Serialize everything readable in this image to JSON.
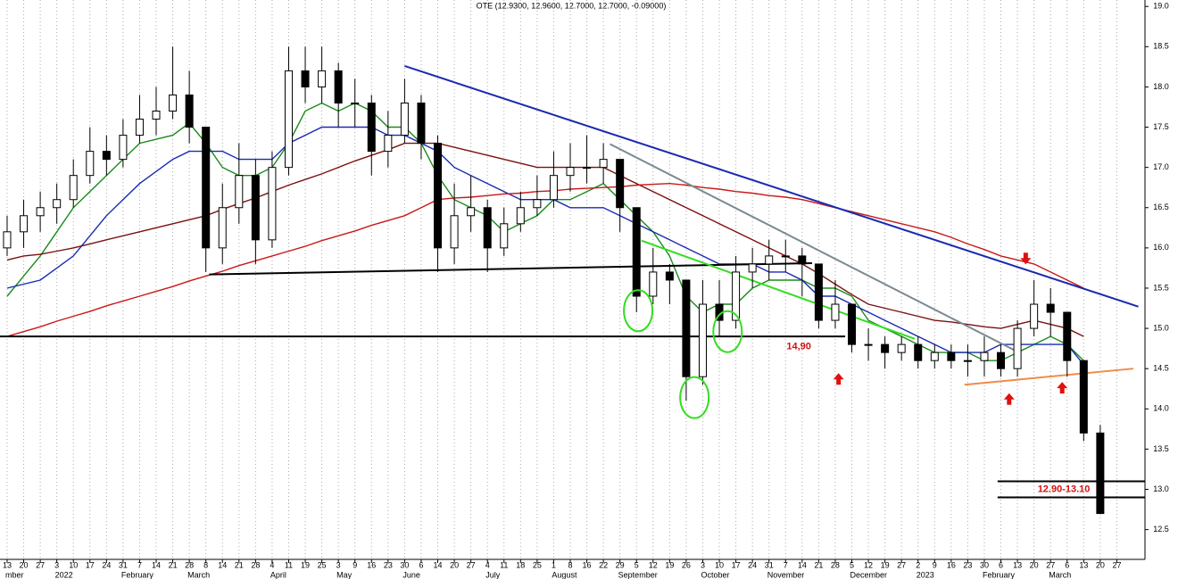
{
  "chart_data": {
    "type": "candlestick",
    "title": "OTE (12.9300, 12.9600, 12.7000, 12.7000, -0.09000)",
    "x_labels": [
      "13",
      "20",
      "27",
      "3",
      "10",
      "17",
      "24",
      "31",
      "7",
      "14",
      "21",
      "28",
      "8",
      "14",
      "21",
      "28",
      "4",
      "11",
      "19",
      "25",
      "3",
      "9",
      "16",
      "23",
      "30",
      "6",
      "14",
      "20",
      "27",
      "4",
      "11",
      "18",
      "25",
      "1",
      "8",
      "16",
      "22",
      "29",
      "5",
      "12",
      "19",
      "26",
      "3",
      "10",
      "17",
      "24",
      "31",
      "7",
      "14",
      "21",
      "28",
      "5",
      "12",
      "19",
      "27",
      "2",
      "9",
      "16",
      "23",
      "30",
      "6",
      "13",
      "20",
      "27",
      "6",
      "13",
      "20",
      "27"
    ],
    "month_labels": [
      "mber",
      null,
      null,
      "2022",
      null,
      null,
      null,
      "February",
      null,
      null,
      null,
      "March",
      null,
      null,
      null,
      null,
      "April",
      null,
      null,
      null,
      "May",
      null,
      null,
      null,
      "June",
      null,
      null,
      null,
      null,
      "July",
      null,
      null,
      null,
      "August",
      null,
      null,
      null,
      "September",
      null,
      null,
      null,
      null,
      "October",
      null,
      null,
      null,
      "November",
      null,
      null,
      null,
      null,
      "December",
      null,
      null,
      null,
      "2023",
      null,
      null,
      null,
      "February",
      null,
      null,
      null,
      "March",
      null,
      null,
      null,
      null
    ],
    "open": [
      16.0,
      16.2,
      16.4,
      16.5,
      16.6,
      16.9,
      17.2,
      17.1,
      17.4,
      17.6,
      17.7,
      17.9,
      17.5,
      16.0,
      16.5,
      16.9,
      16.1,
      17.0,
      18.2,
      18.0,
      18.2,
      17.8,
      17.8,
      17.2,
      17.4,
      17.8,
      17.3,
      16.0,
      16.4,
      16.5,
      16.0,
      16.3,
      16.5,
      16.6,
      16.9,
      17.0,
      17.0,
      17.1,
      16.5,
      15.4,
      15.7,
      15.6,
      14.4,
      15.3,
      15.1,
      15.7,
      15.8,
      15.9,
      15.9,
      15.8,
      15.1,
      15.3,
      14.8,
      14.8,
      14.7,
      14.8,
      14.6,
      14.7,
      14.6,
      14.6,
      14.7,
      14.5,
      15.0,
      15.3,
      15.2,
      14.6,
      13.7,
      null
    ],
    "high": [
      16.4,
      16.6,
      16.7,
      16.8,
      17.1,
      17.5,
      17.4,
      17.6,
      17.9,
      18.0,
      18.5,
      18.2,
      17.5,
      16.8,
      17.3,
      17.1,
      17.2,
      18.5,
      18.5,
      18.5,
      18.3,
      18.1,
      17.9,
      17.7,
      18.1,
      17.9,
      17.4,
      16.8,
      16.9,
      16.6,
      16.5,
      16.7,
      16.9,
      17.2,
      17.3,
      17.4,
      17.3,
      17.1,
      16.5,
      16.0,
      15.8,
      15.6,
      15.6,
      15.6,
      15.9,
      16.0,
      16.1,
      16.1,
      16.0,
      15.8,
      15.6,
      15.3,
      15.0,
      14.9,
      14.9,
      14.9,
      14.8,
      14.8,
      14.8,
      14.9,
      14.8,
      15.1,
      15.6,
      15.5,
      15.2,
      14.6,
      13.8,
      null
    ],
    "low": [
      15.9,
      16.0,
      16.2,
      16.3,
      16.5,
      16.8,
      16.9,
      17.0,
      17.3,
      17.4,
      17.6,
      17.3,
      15.7,
      15.8,
      16.3,
      15.8,
      16.0,
      16.9,
      17.8,
      17.8,
      17.5,
      17.5,
      16.9,
      17.0,
      17.3,
      17.1,
      15.7,
      15.8,
      16.2,
      15.7,
      15.9,
      16.2,
      16.4,
      16.5,
      16.7,
      16.8,
      16.8,
      16.2,
      15.2,
      15.3,
      15.3,
      14.1,
      14.3,
      14.9,
      15.0,
      15.5,
      15.6,
      15.7,
      15.4,
      15.0,
      15.0,
      14.7,
      14.6,
      14.5,
      14.6,
      14.5,
      14.5,
      14.5,
      14.4,
      14.4,
      14.4,
      14.4,
      14.9,
      14.9,
      14.4,
      13.6,
      12.7,
      null
    ],
    "close": [
      16.2,
      16.4,
      16.5,
      16.6,
      16.9,
      17.2,
      17.1,
      17.4,
      17.6,
      17.7,
      17.9,
      17.5,
      16.0,
      16.5,
      16.9,
      16.1,
      17.0,
      18.2,
      18.0,
      18.2,
      17.8,
      17.8,
      17.2,
      17.4,
      17.8,
      17.3,
      16.0,
      16.4,
      16.5,
      16.0,
      16.3,
      16.5,
      16.6,
      16.9,
      17.0,
      17.0,
      17.1,
      16.5,
      15.4,
      15.7,
      15.6,
      14.4,
      15.3,
      15.1,
      15.7,
      15.8,
      15.9,
      15.9,
      15.8,
      15.1,
      15.3,
      14.8,
      14.8,
      14.7,
      14.8,
      14.6,
      14.7,
      14.6,
      14.6,
      14.7,
      14.5,
      15.0,
      15.3,
      15.2,
      14.6,
      13.7,
      12.7,
      null
    ],
    "moving_averages": [
      {
        "color": "#1a8a1a",
        "values": [
          15.4,
          15.65,
          15.9,
          16.2,
          16.5,
          16.7,
          16.9,
          17.1,
          17.3,
          17.35,
          17.4,
          17.55,
          17.3,
          17.0,
          16.9,
          16.9,
          17.0,
          17.3,
          17.7,
          17.8,
          17.7,
          17.8,
          17.7,
          17.5,
          17.5,
          17.3,
          16.9,
          16.6,
          16.5,
          16.4,
          16.2,
          16.3,
          16.4,
          16.6,
          16.6,
          16.7,
          16.8,
          16.6,
          16.4,
          16.2,
          15.9,
          15.4,
          15.2,
          15.3,
          15.3,
          15.5,
          15.6,
          15.6,
          15.6,
          15.5,
          15.5,
          15.4,
          15.1,
          15.0,
          14.9,
          14.8,
          14.7,
          14.7,
          14.7,
          14.6,
          14.6,
          14.7,
          14.8,
          14.9,
          14.8,
          14.6,
          null,
          null
        ]
      },
      {
        "color": "#1a2ab0",
        "values": [
          15.5,
          15.55,
          15.6,
          15.75,
          15.9,
          16.15,
          16.4,
          16.6,
          16.8,
          16.95,
          17.1,
          17.2,
          17.2,
          17.2,
          17.1,
          17.1,
          17.1,
          17.3,
          17.4,
          17.5,
          17.5,
          17.5,
          17.5,
          17.4,
          17.4,
          17.3,
          17.2,
          17.0,
          16.9,
          16.8,
          16.7,
          16.6,
          16.6,
          16.6,
          16.5,
          16.5,
          16.5,
          16.4,
          16.3,
          16.2,
          16.1,
          16.0,
          15.9,
          15.8,
          15.8,
          15.8,
          15.7,
          15.7,
          15.6,
          15.4,
          15.4,
          15.3,
          15.2,
          15.1,
          15.0,
          14.9,
          14.8,
          14.7,
          14.7,
          14.7,
          14.8,
          14.8,
          14.8,
          14.8,
          14.8,
          14.55,
          null,
          null
        ]
      },
      {
        "color": "#7a1010",
        "values": [
          15.85,
          15.9,
          15.92,
          15.96,
          16.0,
          16.05,
          16.1,
          16.15,
          16.2,
          16.25,
          16.3,
          16.35,
          16.4,
          16.48,
          16.55,
          16.62,
          16.7,
          16.78,
          16.85,
          16.92,
          17.0,
          17.08,
          17.15,
          17.22,
          17.3,
          17.3,
          17.3,
          17.25,
          17.2,
          17.15,
          17.1,
          17.05,
          17.0,
          17.0,
          17.0,
          17.0,
          17.0,
          16.9,
          16.8,
          16.7,
          16.6,
          16.5,
          16.4,
          16.3,
          16.2,
          16.1,
          16.0,
          15.9,
          15.8,
          15.68,
          15.55,
          15.42,
          15.3,
          15.25,
          15.2,
          15.15,
          15.1,
          15.08,
          15.05,
          15.02,
          15.0,
          15.05,
          15.1,
          15.05,
          15.0,
          14.9,
          null,
          null
        ]
      },
      {
        "color": "#c81818",
        "values": [
          14.9,
          14.96,
          15.02,
          15.09,
          15.15,
          15.21,
          15.28,
          15.34,
          15.4,
          15.46,
          15.52,
          15.59,
          15.65,
          15.71,
          15.78,
          15.84,
          15.9,
          15.96,
          16.02,
          16.09,
          16.15,
          16.21,
          16.28,
          16.34,
          16.4,
          16.5,
          16.6,
          16.62,
          16.63,
          16.65,
          16.67,
          16.68,
          16.7,
          16.71,
          16.73,
          16.74,
          16.75,
          16.76,
          16.78,
          16.79,
          16.8,
          16.78,
          16.75,
          16.73,
          16.7,
          16.68,
          16.65,
          16.63,
          16.6,
          16.55,
          16.5,
          16.45,
          16.4,
          16.35,
          16.3,
          16.25,
          16.2,
          16.13,
          16.05,
          15.98,
          15.9,
          15.85,
          15.8,
          15.7,
          15.6,
          15.5,
          null,
          null
        ]
      }
    ],
    "trendlines": [
      {
        "color": "#1a2ab0",
        "from": [
          24.0,
          18.26
        ],
        "to": [
          68.3,
          15.27
        ]
      },
      {
        "color": "#7a8a90",
        "from": [
          36.4,
          17.29
        ],
        "to": [
          61.0,
          14.71
        ]
      },
      {
        "color": "#000000",
        "from": [
          12.2,
          15.67
        ],
        "to": [
          48.6,
          15.81
        ]
      },
      {
        "color": "#000000",
        "from": [
          -0.43,
          14.9
        ],
        "to": [
          50.6,
          14.9
        ]
      },
      {
        "color": "#33dd22",
        "from": [
          38.3,
          16.09
        ],
        "to": [
          54.8,
          14.87
        ]
      },
      {
        "color": "#f08a4a",
        "from": [
          57.8,
          14.3
        ],
        "to": [
          68.0,
          14.5
        ]
      },
      {
        "color": "#000000",
        "from": [
          59.8,
          13.1
        ],
        "to": [
          68.7,
          13.1
        ]
      },
      {
        "color": "#000000",
        "from": [
          59.8,
          12.9
        ],
        "to": [
          68.7,
          12.9
        ]
      }
    ],
    "circles": [
      [
        38.1,
        15.22
      ],
      [
        41.5,
        14.14
      ],
      [
        43.5,
        14.96
      ]
    ],
    "arrows_down": [
      [
        61.5,
        15.84
      ]
    ],
    "arrows_up": [
      [
        50.2,
        14.4
      ],
      [
        60.5,
        14.15
      ],
      [
        63.7,
        14.29
      ]
    ],
    "annotations": [
      {
        "text": "14,90",
        "x": 47.8,
        "y": 14.77
      },
      {
        "text": "12.90-13.10",
        "x": 63.8,
        "y": 13.0
      }
    ],
    "xlim": [
      -0.43,
      68.7
    ],
    "ylim": [
      12.13,
      19.08
    ],
    "yticks": [
      {
        "value": 12.5,
        "label": "12.5"
      },
      {
        "value": 13,
        "label": "13.0"
      },
      {
        "value": 13.5,
        "label": "13.5"
      },
      {
        "value": 14,
        "label": "14.0"
      },
      {
        "value": 14.5,
        "label": "14.5"
      },
      {
        "value": 15,
        "label": "15.0"
      },
      {
        "value": 15.5,
        "label": "15.5"
      },
      {
        "value": 16,
        "label": "16.0"
      },
      {
        "value": 16.5,
        "label": "16.5"
      },
      {
        "value": 17,
        "label": "17.0"
      },
      {
        "value": 17.5,
        "label": "17.5"
      },
      {
        "value": 18,
        "label": "18.0"
      },
      {
        "value": 18.5,
        "label": "18.5"
      },
      {
        "value": 19,
        "label": "19.0"
      }
    ],
    "grid": true
  }
}
